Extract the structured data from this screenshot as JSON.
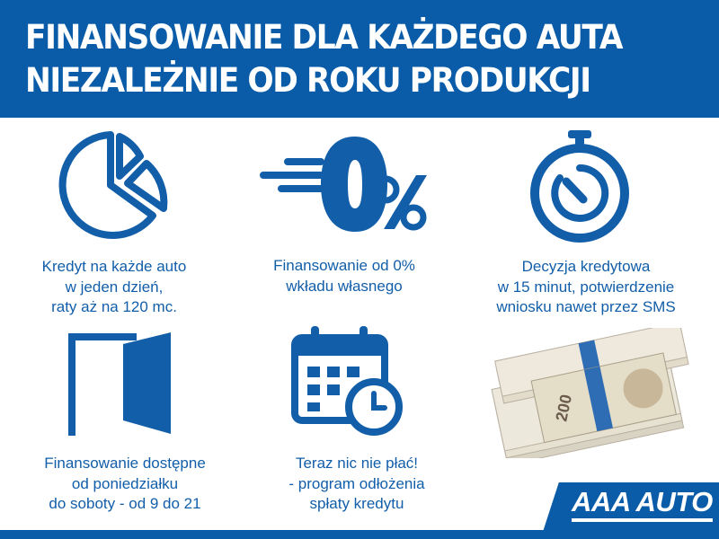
{
  "header": {
    "line1": "FINANSOWANIE DLA KAŻDEGO AUTA",
    "line2": "NIEZALEŻNIE OD ROKU PRODUKCJI"
  },
  "features": [
    {
      "icon": "pie-chart-icon",
      "lines": [
        "Kredyt na każde auto",
        "w jeden dzień,",
        "raty aż na 120 mc."
      ]
    },
    {
      "icon": "zero-percent-icon",
      "lines": [
        "Finansowanie od 0%",
        "wkładu własnego"
      ]
    },
    {
      "icon": "stopwatch-icon",
      "lines": [
        "Decyzja kredytowa",
        "w 15 minut, potwierdzenie",
        "wniosku nawet przez SMS"
      ]
    },
    {
      "icon": "open-door-icon",
      "lines": [
        "Finansowanie dostępne",
        "od poniedziałku",
        "do soboty - od 9 do 21"
      ]
    },
    {
      "icon": "calendar-clock-icon",
      "lines": [
        "Teraz nic nie płać!",
        "- program odłożenia",
        "spłaty kredytu"
      ]
    }
  ],
  "image": {
    "banknote_denomination": "200"
  },
  "logo": {
    "text": "AAA AUTO"
  },
  "colors": {
    "brand_blue": "#0a5ca8",
    "text_blue": "#125ea9"
  }
}
